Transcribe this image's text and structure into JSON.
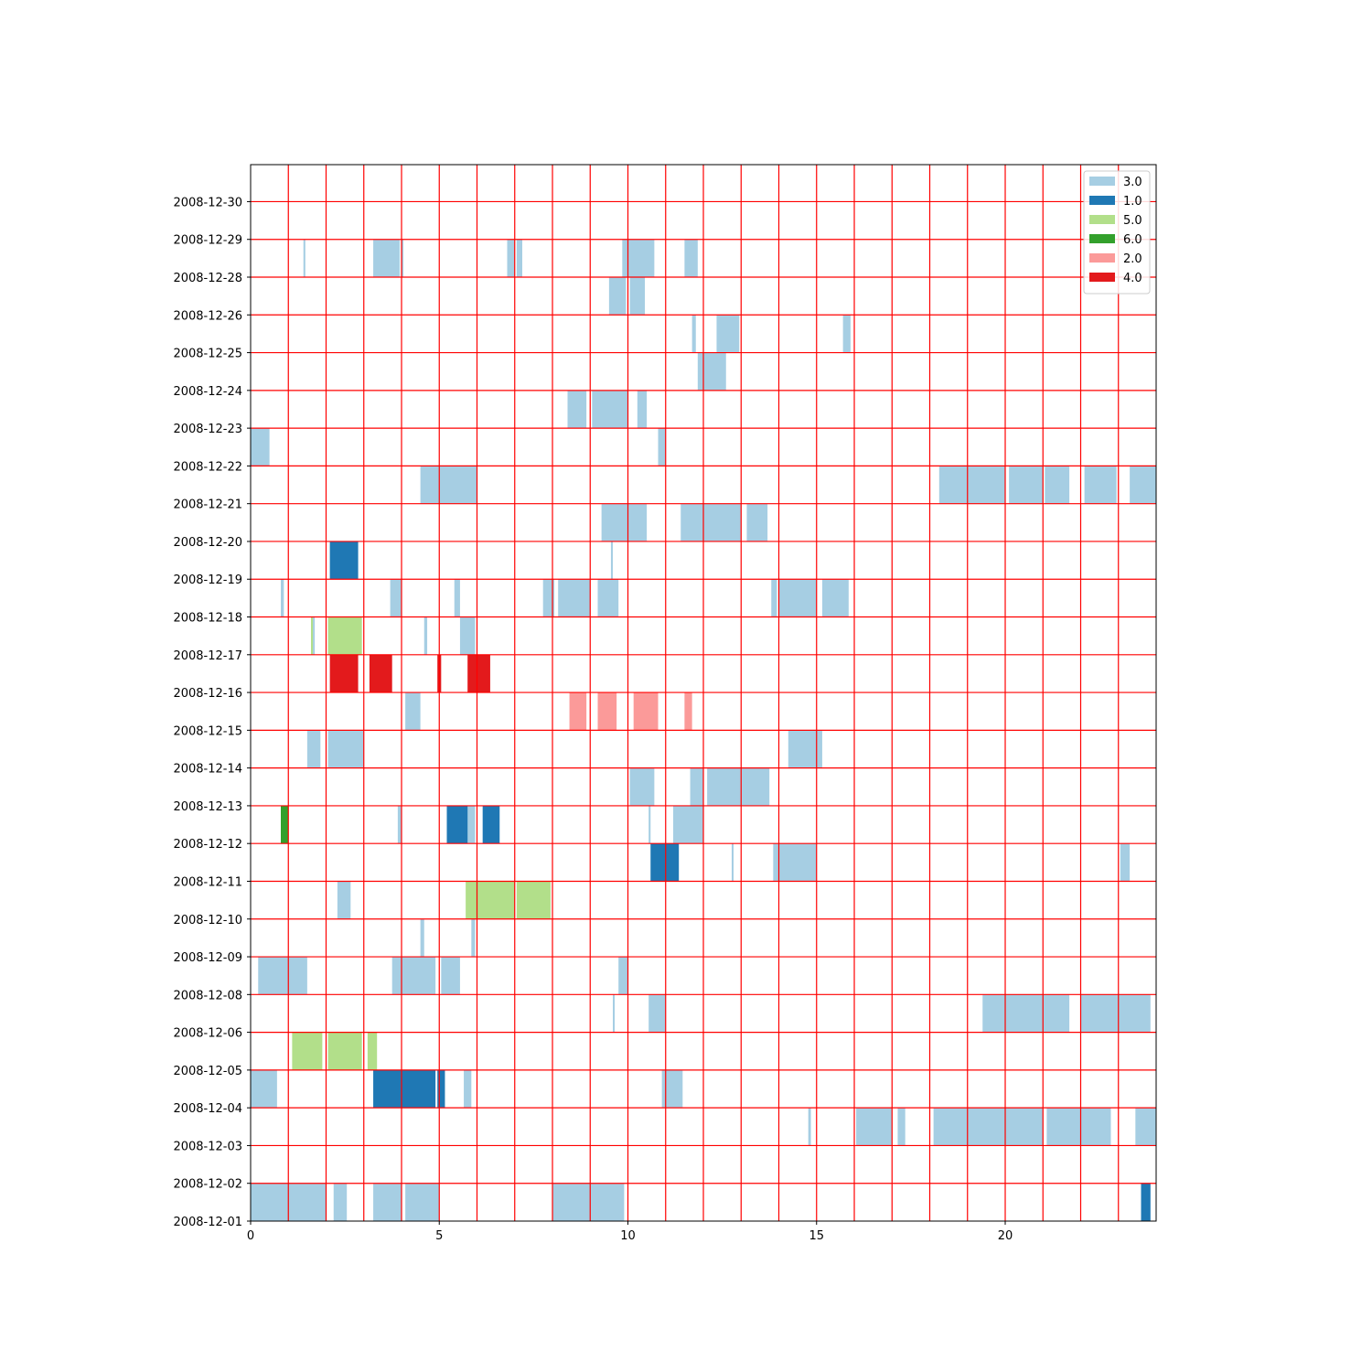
{
  "chart_data": {
    "type": "bar",
    "orientation": "horizontal-broken-bar",
    "title": "",
    "xlabel": "",
    "ylabel": "",
    "xlim": [
      0,
      24
    ],
    "x_ticks": [
      "0",
      "5",
      "10",
      "15",
      "20"
    ],
    "grid": "on",
    "grid_color": "#ff0000",
    "legend_position": "upper-right",
    "rows": [
      "2008-12-01",
      "2008-12-02",
      "2008-12-03",
      "2008-12-04",
      "2008-12-05",
      "2008-12-06",
      "2008-12-08",
      "2008-12-09",
      "2008-12-10",
      "2008-12-11",
      "2008-12-12",
      "2008-12-13",
      "2008-12-14",
      "2008-12-15",
      "2008-12-16",
      "2008-12-17",
      "2008-12-18",
      "2008-12-19",
      "2008-12-20",
      "2008-12-21",
      "2008-12-22",
      "2008-12-23",
      "2008-12-24",
      "2008-12-25",
      "2008-12-26",
      "2008-12-28",
      "2008-12-29",
      "2008-12-30"
    ],
    "series": [
      {
        "name": "3.0",
        "color": "#a6cee3",
        "segments": [
          [
            0,
            0,
            2
          ],
          [
            0,
            2.2,
            2.55
          ],
          [
            0,
            3.25,
            4
          ],
          [
            0,
            4.1,
            5
          ],
          [
            0,
            8,
            9.9
          ],
          [
            2,
            14.78,
            14.85
          ],
          [
            2,
            16.05,
            17
          ],
          [
            2,
            17.15,
            17.35
          ],
          [
            2,
            18.1,
            21
          ],
          [
            2,
            21.1,
            22.8
          ],
          [
            2,
            23.45,
            24
          ],
          [
            3,
            0,
            0.7
          ],
          [
            3,
            5.65,
            5.85
          ],
          [
            3,
            10.9,
            11.45
          ],
          [
            5,
            9.6,
            9.65
          ],
          [
            5,
            10.55,
            11
          ],
          [
            5,
            19.4,
            21.7
          ],
          [
            5,
            22,
            23.85
          ],
          [
            6,
            0.2,
            1.5
          ],
          [
            6,
            3.75,
            4.9
          ],
          [
            6,
            5.05,
            5.55
          ],
          [
            6,
            9.75,
            10
          ],
          [
            7,
            4.5,
            4.6
          ],
          [
            7,
            5.85,
            5.95
          ],
          [
            8,
            2.3,
            2.65
          ],
          [
            9,
            12.75,
            12.8
          ],
          [
            9,
            13.85,
            15
          ],
          [
            9,
            23.05,
            23.3
          ],
          [
            10,
            3.9,
            4
          ],
          [
            10,
            5.25,
            5.95
          ],
          [
            10,
            10.55,
            10.6
          ],
          [
            10,
            11.2,
            12
          ],
          [
            11,
            10.05,
            10.7
          ],
          [
            11,
            11.65,
            12
          ],
          [
            11,
            12.1,
            13.75
          ],
          [
            12,
            1.5,
            1.85
          ],
          [
            12,
            2.05,
            3
          ],
          [
            12,
            14.25,
            15.15
          ],
          [
            13,
            4.1,
            4.5
          ],
          [
            15,
            1.65,
            1.7
          ],
          [
            15,
            4.6,
            4.68
          ],
          [
            15,
            5.55,
            5.95
          ],
          [
            16,
            0.8,
            0.88
          ],
          [
            16,
            3.7,
            4
          ],
          [
            16,
            5.4,
            5.55
          ],
          [
            16,
            7.75,
            8.05
          ],
          [
            16,
            8.15,
            9
          ],
          [
            16,
            9.2,
            9.75
          ],
          [
            16,
            13.8,
            13.95
          ],
          [
            16,
            14,
            15
          ],
          [
            16,
            15.15,
            15.85
          ],
          [
            17,
            9.55,
            9.6
          ],
          [
            18,
            9.3,
            10.5
          ],
          [
            18,
            11.4,
            13
          ],
          [
            18,
            13.15,
            13.7
          ],
          [
            19,
            4.5,
            6
          ],
          [
            19,
            18.25,
            20
          ],
          [
            19,
            20.1,
            21
          ],
          [
            19,
            21.05,
            21.7
          ],
          [
            19,
            22.1,
            22.95
          ],
          [
            19,
            23.3,
            24
          ],
          [
            20,
            0,
            0.5
          ],
          [
            20,
            10.8,
            11
          ],
          [
            21,
            8.4,
            8.9
          ],
          [
            21,
            9.05,
            10
          ],
          [
            21,
            10.25,
            10.5
          ],
          [
            22,
            11.85,
            12.6
          ],
          [
            23,
            11.7,
            11.8
          ],
          [
            23,
            12.35,
            12.95
          ],
          [
            23,
            15.7,
            15.9
          ],
          [
            24,
            9.5,
            9.95
          ],
          [
            24,
            10.05,
            10.45
          ],
          [
            25,
            1.4,
            1.45
          ],
          [
            25,
            3.25,
            3.95
          ],
          [
            25,
            4,
            4.05
          ],
          [
            25,
            6.8,
            7
          ],
          [
            25,
            7.05,
            7.2
          ],
          [
            25,
            9.85,
            10.7
          ],
          [
            25,
            11.5,
            11.85
          ]
        ]
      },
      {
        "name": "1.0",
        "color": "#1f78b4",
        "segments": [
          [
            0,
            23.6,
            23.85
          ],
          [
            3,
            3.25,
            4.9
          ],
          [
            3,
            4.95,
            5.15
          ],
          [
            9,
            10.6,
            11.35
          ],
          [
            10,
            5.2,
            5.75
          ],
          [
            10,
            6.15,
            6.6
          ],
          [
            17,
            2.1,
            2.85
          ]
        ]
      },
      {
        "name": "5.0",
        "color": "#b2df8a",
        "segments": [
          [
            4,
            1.1,
            1.9
          ],
          [
            4,
            2.05,
            2.95
          ],
          [
            4,
            3.1,
            3.35
          ],
          [
            8,
            5.7,
            7
          ],
          [
            8,
            7.05,
            7.95
          ],
          [
            15,
            1.6,
            1.65
          ],
          [
            15,
            2.05,
            2.95
          ]
        ]
      },
      {
        "name": "6.0",
        "color": "#33a02c",
        "segments": [
          [
            10,
            0.8,
            1
          ]
        ]
      },
      {
        "name": "2.0",
        "color": "#fb9a99",
        "segments": [
          [
            13,
            8.45,
            8.9
          ],
          [
            13,
            9.2,
            9.7
          ],
          [
            13,
            10.15,
            10.8
          ],
          [
            13,
            11.5,
            11.7
          ]
        ]
      },
      {
        "name": "4.0",
        "color": "#e31a1c",
        "segments": [
          [
            14,
            2.1,
            2.85
          ],
          [
            14,
            3.15,
            3.75
          ],
          [
            14,
            4.95,
            5.05
          ],
          [
            14,
            5.75,
            6.35
          ]
        ]
      }
    ]
  }
}
